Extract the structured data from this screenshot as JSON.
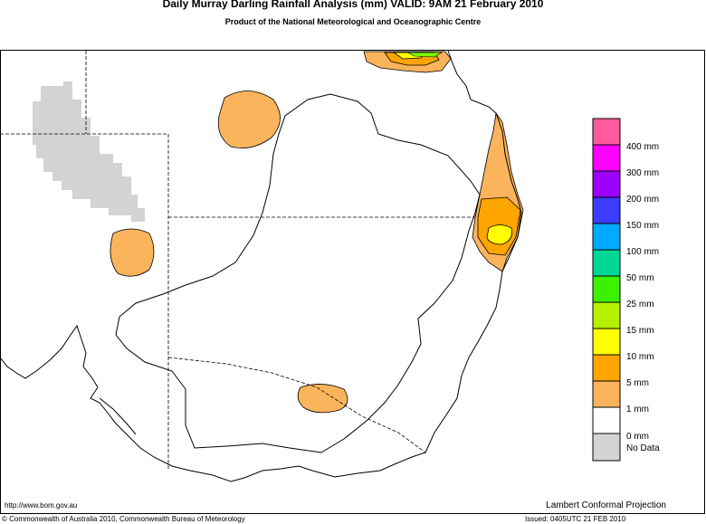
{
  "header": {
    "title": "Daily Murray Darling Rainfall Analysis (mm)  VALID: 9AM 21 February 2010",
    "subtitle": "Product of the National Meteorological and Oceanographic Centre"
  },
  "legend": {
    "labels": [
      "400 mm",
      "300 mm",
      "200 mm",
      "150 mm",
      "100 mm",
      "50 mm",
      "25 mm",
      "15 mm",
      "10 mm",
      "5 mm",
      "1 mm",
      "0 mm",
      "No Data"
    ]
  },
  "footer": {
    "url": "http://www.bom.gov.au",
    "projection": "Lambert Conformal Projection",
    "copyright": "© Commonwealth of Australia 2010, Commonwealth Bureau of Meteorology",
    "issued": "Issued: 0405UTC 21 FEB 2010"
  }
}
